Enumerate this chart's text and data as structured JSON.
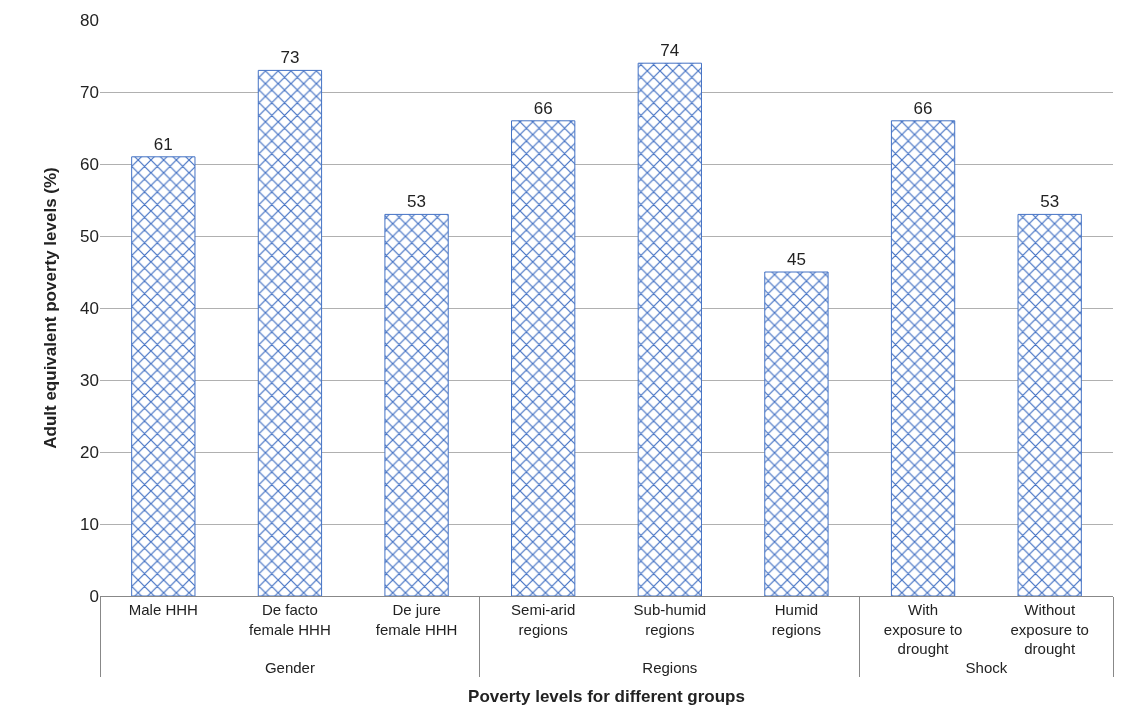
{
  "chart_data": {
    "type": "bar",
    "xlabel": "Poverty levels for different groups",
    "ylabel": "Adult equivalent poverty levels (%)",
    "categories": [
      "Male HHH",
      "De facto female HHH",
      "De jure female HHH",
      "Semi-arid regions",
      "Sub-humid regions",
      "Humid regions",
      "With exposure to drought",
      "Without exposure to drought"
    ],
    "values": [
      61,
      73,
      53,
      66,
      74,
      45,
      66,
      53
    ],
    "color": "#4472c4",
    "annotations": [
      "Gender",
      "Regions",
      "Shock"
    ],
    "ylim": [
      0,
      80
    ],
    "yticks": [
      0,
      10,
      20,
      30,
      40,
      50,
      60,
      70,
      80
    ],
    "grid": "y",
    "data_labels": true
  }
}
